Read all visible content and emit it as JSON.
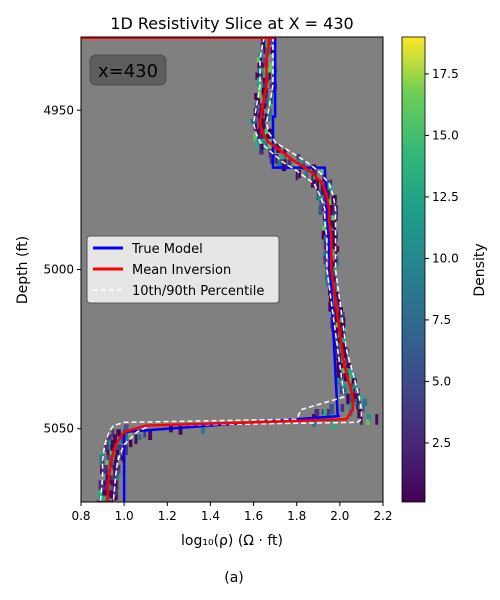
{
  "chart_data": {
    "type": "line",
    "title": "1D Resistivity Slice at X = 430",
    "xlabel": "log₁₀(ρ) (Ω · ft)",
    "ylabel": "Depth (ft)",
    "caption": "(a)",
    "annotation": "x=430",
    "xlim": [
      0.8,
      2.2
    ],
    "ylim": [
      5073,
      4927
    ],
    "xticks": [
      "0.8",
      "1.0",
      "1.2",
      "1.4",
      "1.6",
      "1.8",
      "2.0",
      "2.2"
    ],
    "yticks": [
      "4950",
      "5000",
      "5050"
    ],
    "colorbar": {
      "label": "Density",
      "range": [
        0.1,
        19
      ],
      "ticks": [
        "2.5",
        "5.0",
        "7.5",
        "10.0",
        "12.5",
        "15.0",
        "17.5"
      ]
    },
    "legend": {
      "placement": "center-left",
      "entries": [
        "True Model",
        "Mean Inversion",
        "10th/90th Percentile"
      ]
    },
    "series": [
      {
        "name": "True Model",
        "color": "#0000ff",
        "depth": [
          4927,
          4952,
          4952,
          4968,
          4968,
          5046,
          5046,
          5051,
          5051,
          5073
        ],
        "value": [
          1.7,
          1.7,
          1.69,
          1.69,
          1.93,
          1.99,
          2.0,
          1.0,
          1.0,
          1.0
        ]
      },
      {
        "name": "Mean Inversion",
        "color": "#ff0000",
        "depth": [
          4927,
          4930,
          4934,
          4938,
          4942,
          4946,
          4950,
          4954,
          4957,
          4960,
          4963,
          4966,
          4969,
          4973,
          4977,
          4981,
          4985,
          4990,
          4995,
          5000,
          5005,
          5010,
          5015,
          5020,
          5025,
          5030,
          5035,
          5040,
          5044,
          5047,
          5048,
          5049,
          5051,
          5055,
          5060,
          5065,
          5073
        ],
        "value": [
          1.67,
          1.67,
          1.66,
          1.66,
          1.66,
          1.65,
          1.64,
          1.63,
          1.64,
          1.67,
          1.73,
          1.79,
          1.86,
          1.92,
          1.94,
          1.95,
          1.95,
          1.96,
          1.96,
          1.96,
          1.97,
          1.98,
          1.99,
          2.0,
          2.01,
          2.02,
          2.04,
          2.06,
          2.06,
          2.03,
          1.6,
          1.1,
          1.0,
          0.96,
          0.94,
          0.93,
          0.92
        ]
      },
      {
        "name": "10th Percentile",
        "color": "#ffffff",
        "depth": [
          4927,
          4930,
          4934,
          4938,
          4942,
          4946,
          4950,
          4954,
          4957,
          4960,
          4963,
          4966,
          4969,
          4973,
          4977,
          4981,
          4985,
          4990,
          4995,
          5000,
          5005,
          5010,
          5015,
          5020,
          5025,
          5030,
          5035,
          5040,
          5044,
          5047,
          5048,
          5049,
          5051,
          5055,
          5060,
          5065,
          5073
        ],
        "value": [
          1.65,
          1.64,
          1.63,
          1.63,
          1.63,
          1.62,
          1.61,
          1.6,
          1.61,
          1.63,
          1.68,
          1.73,
          1.8,
          1.88,
          1.91,
          1.93,
          1.93,
          1.94,
          1.94,
          1.94,
          1.95,
          1.96,
          1.97,
          1.98,
          1.99,
          2.0,
          2.01,
          2.02,
          1.82,
          1.8,
          1.0,
          0.95,
          0.93,
          0.91,
          0.9,
          0.9,
          0.89
        ]
      },
      {
        "name": "90th Percentile",
        "color": "#ffffff",
        "depth": [
          4927,
          4930,
          4934,
          4938,
          4942,
          4946,
          4950,
          4954,
          4957,
          4960,
          4963,
          4966,
          4969,
          4973,
          4977,
          4981,
          4985,
          4990,
          4995,
          5000,
          5005,
          5010,
          5015,
          5020,
          5025,
          5030,
          5035,
          5040,
          5044,
          5047,
          5048,
          5049,
          5051,
          5055,
          5060,
          5065,
          5073
        ],
        "value": [
          1.69,
          1.69,
          1.69,
          1.69,
          1.69,
          1.68,
          1.67,
          1.66,
          1.67,
          1.7,
          1.77,
          1.84,
          1.9,
          1.95,
          1.97,
          1.98,
          1.98,
          1.98,
          1.98,
          1.98,
          1.99,
          2.0,
          2.01,
          2.02,
          2.03,
          2.05,
          2.07,
          2.09,
          2.1,
          2.1,
          2.08,
          1.12,
          1.06,
          1.0,
          0.97,
          0.96,
          0.95
        ]
      }
    ]
  }
}
